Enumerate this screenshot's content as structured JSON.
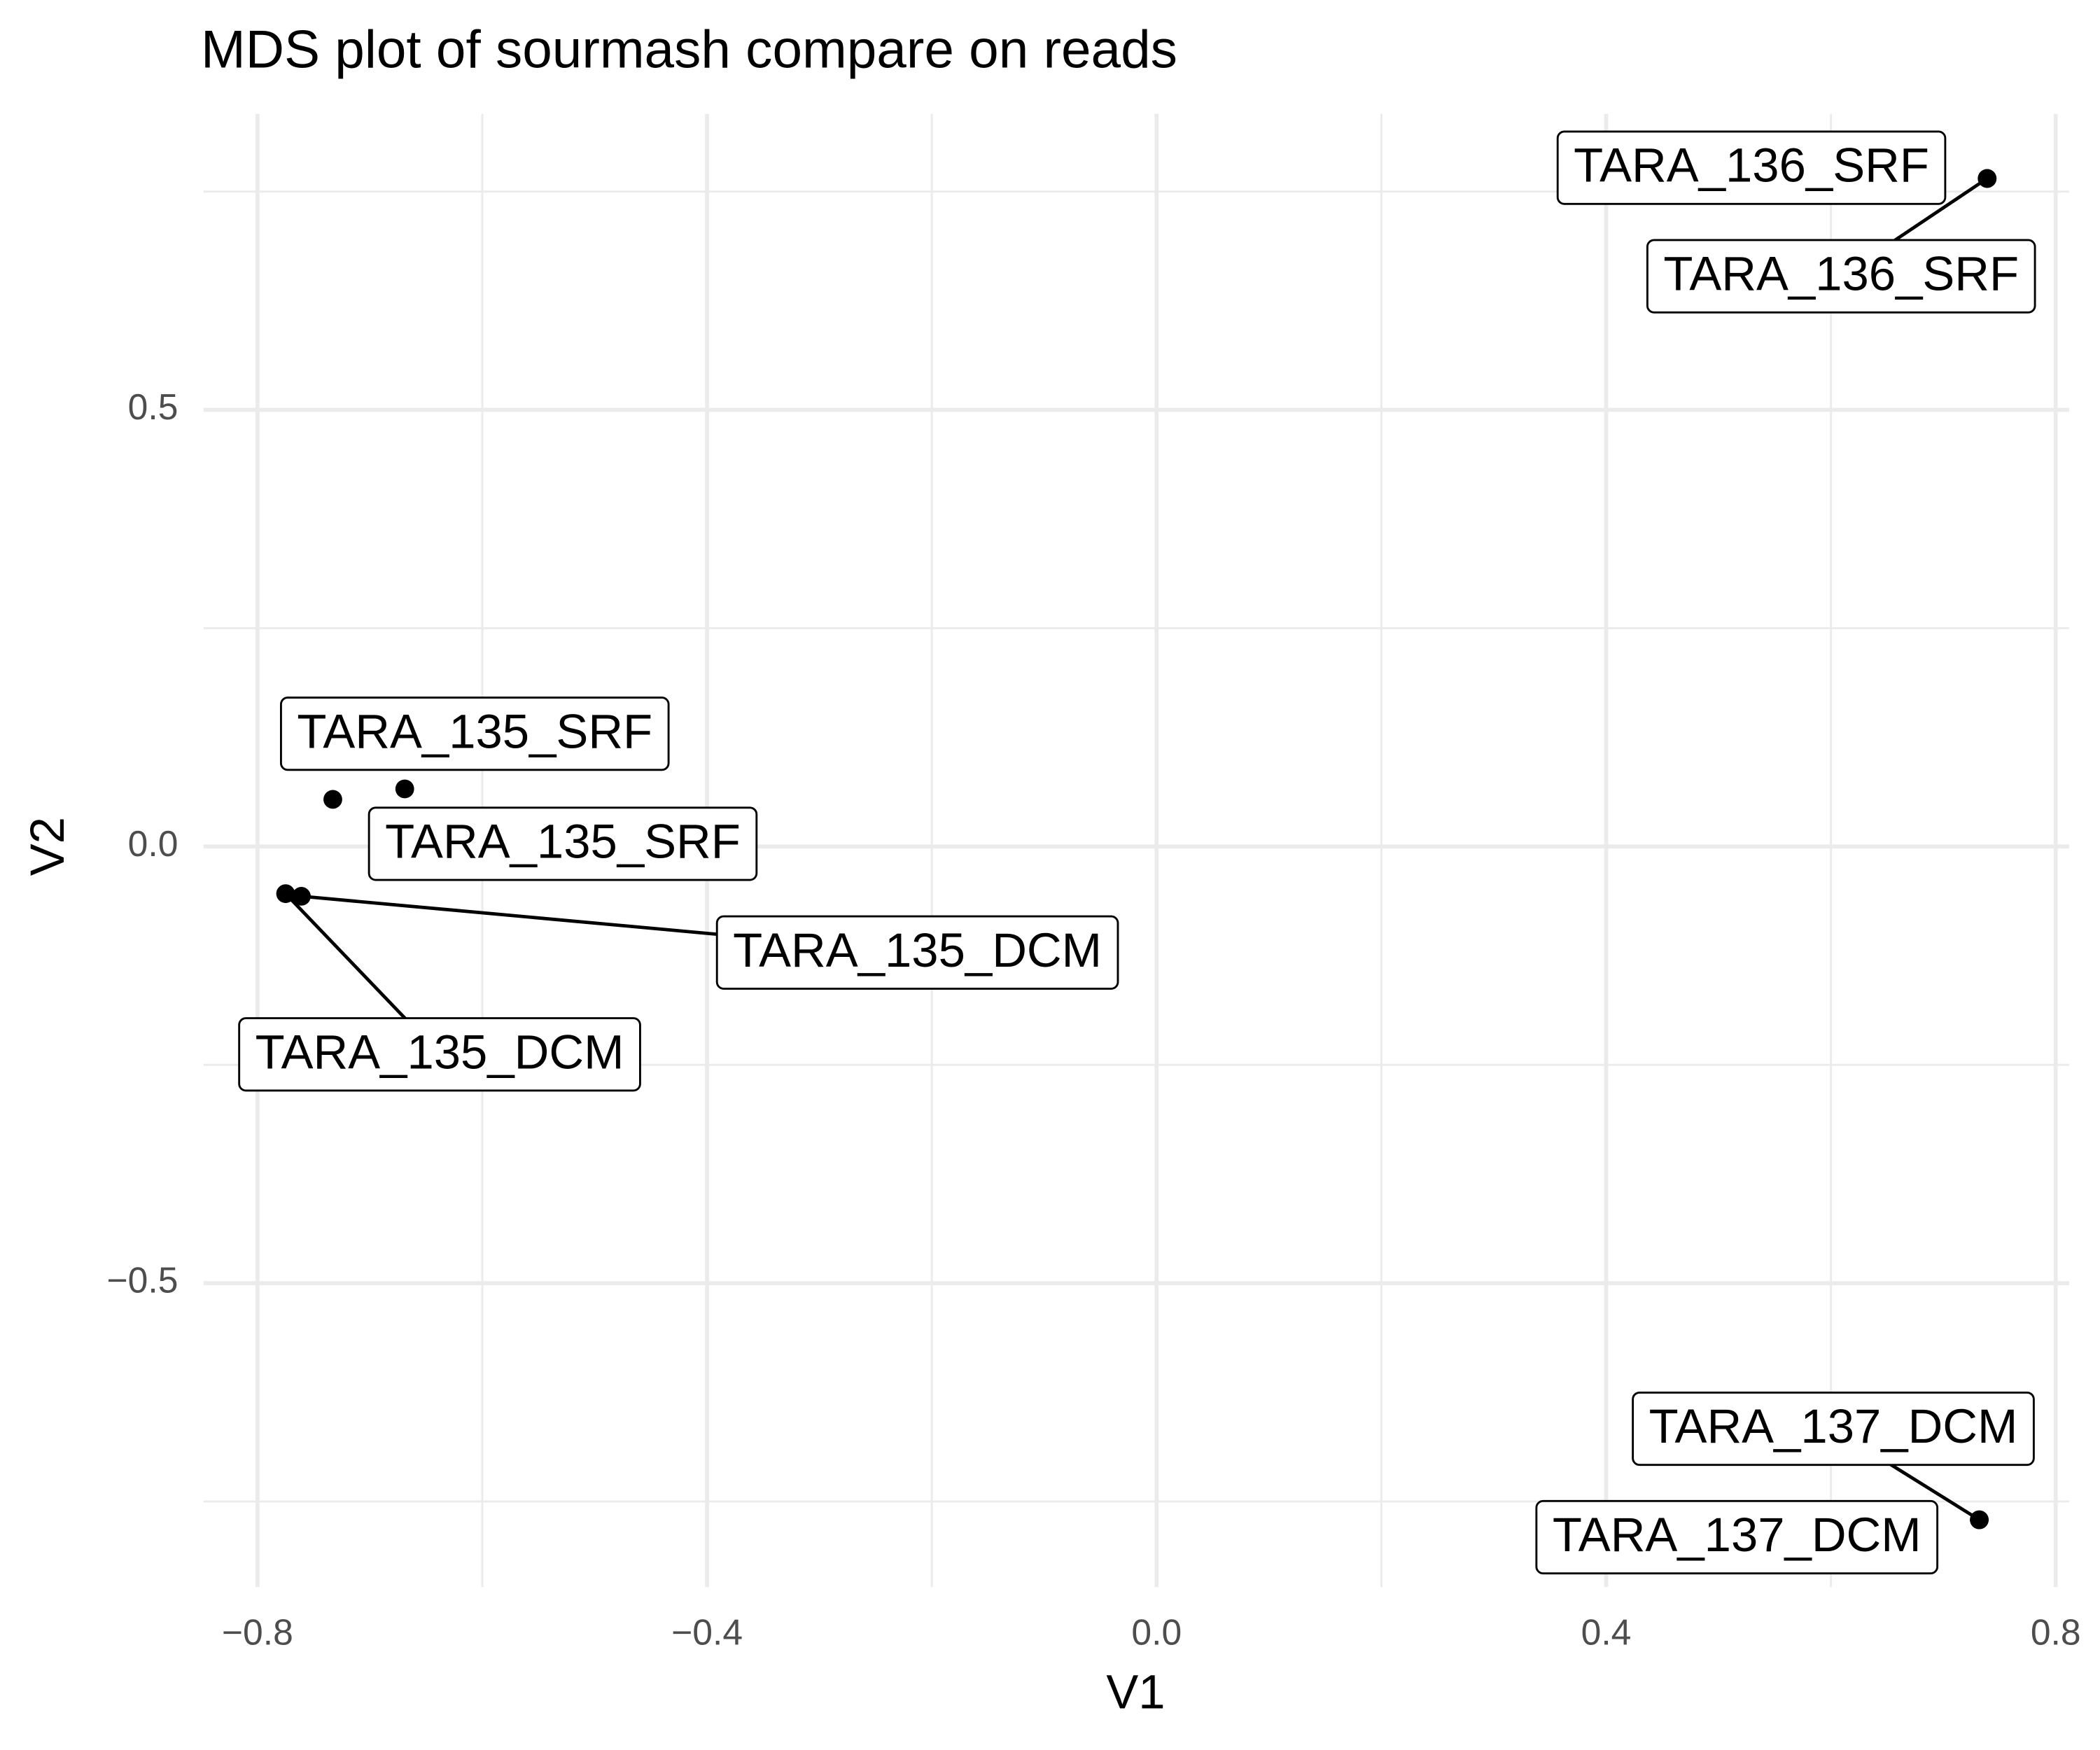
{
  "chart_data": {
    "type": "scatter",
    "title": "MDS plot of sourmash compare on reads",
    "x_label": "V1",
    "y_label": "V2",
    "x": [
      0.739,
      0.739,
      -0.733,
      -0.669,
      -0.775,
      -0.761,
      0.732,
      0.732
    ],
    "y": [
      0.765,
      0.765,
      0.054,
      0.066,
      -0.054,
      -0.057,
      -0.771,
      -0.771
    ],
    "labels": [
      "TARA_136_SRF",
      "TARA_136_SRF",
      "TARA_135_SRF",
      "TARA_135_SRF",
      "TARA_135_DCM",
      "TARA_135_DCM",
      "TARA_137_DCM",
      "TARA_137_DCM"
    ],
    "color": "#000000",
    "xlim": [
      -0.848,
      0.812
    ],
    "ylim": [
      -0.848,
      0.839
    ],
    "xticks": [
      {
        "value": -0.8,
        "label": "−0.8"
      },
      {
        "value": -0.4,
        "label": "−0.4"
      },
      {
        "value": 0.0,
        "label": "0.0"
      },
      {
        "value": 0.4,
        "label": "0.4"
      },
      {
        "value": 0.8,
        "label": "0.8"
      }
    ],
    "yticks": [
      {
        "value": -0.5,
        "label": "−0.5"
      },
      {
        "value": 0.0,
        "label": "0.0"
      },
      0.5
    ],
    "x_minor_grid": [
      -0.6,
      -0.2,
      0.2,
      0.6
    ],
    "y_minor_grid": [
      -0.75,
      -0.25,
      0.25,
      0.75
    ],
    "grid": true
  }
}
